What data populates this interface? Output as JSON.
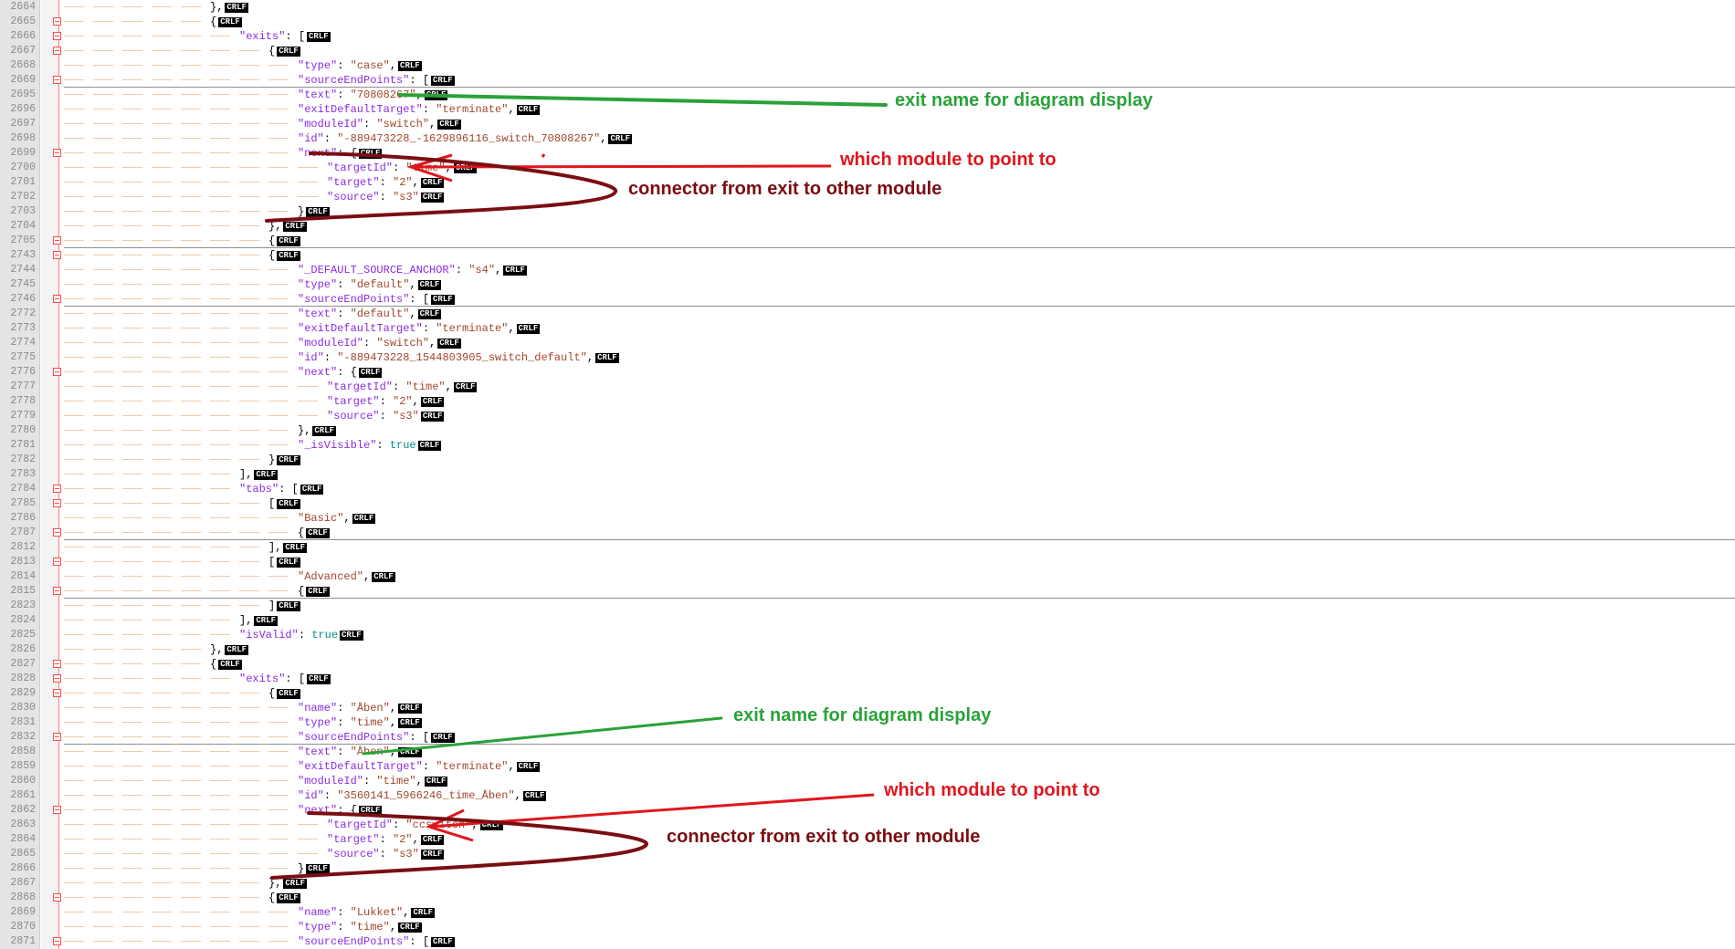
{
  "crlf_label": "CRLF",
  "colors": {
    "key": "#8a2be2",
    "string": "#a0462a",
    "boolean": "#008b8b",
    "fold_marker": "#ff4d4d",
    "annotation_green": "#2aa23a",
    "annotation_red": "#e0161e",
    "annotation_dark_red": "#7a0e12"
  },
  "lines": [
    {
      "n": "2664",
      "indent": 5,
      "parts": [
        [
          "p",
          "},"
        ]
      ],
      "fold": "line"
    },
    {
      "n": "2665",
      "indent": 5,
      "parts": [
        [
          "p",
          "{"
        ]
      ],
      "fold": "box"
    },
    {
      "n": "2666",
      "indent": 6,
      "parts": [
        [
          "k",
          "\"exits\""
        ],
        [
          "p",
          ": ["
        ]
      ],
      "fold": "box"
    },
    {
      "n": "2667",
      "indent": 7,
      "parts": [
        [
          "p",
          "{"
        ]
      ],
      "fold": "box"
    },
    {
      "n": "2668",
      "indent": 8,
      "parts": [
        [
          "k",
          "\"type\""
        ],
        [
          "p",
          ": "
        ],
        [
          "s",
          "\"case\""
        ],
        [
          "p",
          ","
        ]
      ],
      "fold": "line"
    },
    {
      "n": "2669",
      "indent": 8,
      "parts": [
        [
          "k",
          "\"sourceEndPoints\""
        ],
        [
          "p",
          ": ["
        ]
      ],
      "fold": "box",
      "sep": true
    },
    {
      "n": "2695",
      "indent": 8,
      "parts": [
        [
          "k",
          "\"text\""
        ],
        [
          "p",
          ": "
        ],
        [
          "s",
          "\"70808267\""
        ],
        [
          "p",
          ","
        ]
      ],
      "fold": "line"
    },
    {
      "n": "2696",
      "indent": 8,
      "parts": [
        [
          "k",
          "\"exitDefaultTarget\""
        ],
        [
          "p",
          ": "
        ],
        [
          "s",
          "\"terminate\""
        ],
        [
          "p",
          ","
        ]
      ],
      "fold": "line"
    },
    {
      "n": "2697",
      "indent": 8,
      "parts": [
        [
          "k",
          "\"moduleId\""
        ],
        [
          "p",
          ": "
        ],
        [
          "s",
          "\"switch\""
        ],
        [
          "p",
          ","
        ]
      ],
      "fold": "line"
    },
    {
      "n": "2698",
      "indent": 8,
      "parts": [
        [
          "k",
          "\"id\""
        ],
        [
          "p",
          ": "
        ],
        [
          "s",
          "\"-889473228_-1629896116_switch_70808267\""
        ],
        [
          "p",
          ","
        ]
      ],
      "fold": "line"
    },
    {
      "n": "2699",
      "indent": 8,
      "parts": [
        [
          "k",
          "\"next\""
        ],
        [
          "p",
          ": {"
        ]
      ],
      "fold": "box"
    },
    {
      "n": "2700",
      "indent": 9,
      "parts": [
        [
          "k",
          "\"targetId\""
        ],
        [
          "p",
          ": "
        ],
        [
          "s",
          "\"time\""
        ],
        [
          "p",
          ","
        ]
      ],
      "fold": "line"
    },
    {
      "n": "2701",
      "indent": 9,
      "parts": [
        [
          "k",
          "\"target\""
        ],
        [
          "p",
          ": "
        ],
        [
          "s",
          "\"2\""
        ],
        [
          "p",
          ","
        ]
      ],
      "fold": "line"
    },
    {
      "n": "2702",
      "indent": 9,
      "parts": [
        [
          "k",
          "\"source\""
        ],
        [
          "p",
          ": "
        ],
        [
          "s",
          "\"s3\""
        ]
      ],
      "fold": "line"
    },
    {
      "n": "2703",
      "indent": 8,
      "parts": [
        [
          "p",
          "}"
        ]
      ],
      "fold": "line"
    },
    {
      "n": "2704",
      "indent": 7,
      "parts": [
        [
          "p",
          "},"
        ]
      ],
      "fold": "line"
    },
    {
      "n": "2705",
      "indent": 7,
      "parts": [
        [
          "p",
          "{"
        ]
      ],
      "fold": "box",
      "sep": true
    },
    {
      "n": "2743",
      "indent": 7,
      "parts": [
        [
          "p",
          "{"
        ]
      ],
      "fold": "box"
    },
    {
      "n": "2744",
      "indent": 8,
      "parts": [
        [
          "k",
          "\"_DEFAULT_SOURCE_ANCHOR\""
        ],
        [
          "p",
          ": "
        ],
        [
          "s",
          "\"s4\""
        ],
        [
          "p",
          ","
        ]
      ],
      "fold": "line"
    },
    {
      "n": "2745",
      "indent": 8,
      "parts": [
        [
          "k",
          "\"type\""
        ],
        [
          "p",
          ": "
        ],
        [
          "s",
          "\"default\""
        ],
        [
          "p",
          ","
        ]
      ],
      "fold": "line"
    },
    {
      "n": "2746",
      "indent": 8,
      "parts": [
        [
          "k",
          "\"sourceEndPoints\""
        ],
        [
          "p",
          ": ["
        ]
      ],
      "fold": "box",
      "sep": true
    },
    {
      "n": "2772",
      "indent": 8,
      "parts": [
        [
          "k",
          "\"text\""
        ],
        [
          "p",
          ": "
        ],
        [
          "s",
          "\"default\""
        ],
        [
          "p",
          ","
        ]
      ],
      "fold": "line"
    },
    {
      "n": "2773",
      "indent": 8,
      "parts": [
        [
          "k",
          "\"exitDefaultTarget\""
        ],
        [
          "p",
          ": "
        ],
        [
          "s",
          "\"terminate\""
        ],
        [
          "p",
          ","
        ]
      ],
      "fold": "line"
    },
    {
      "n": "2774",
      "indent": 8,
      "parts": [
        [
          "k",
          "\"moduleId\""
        ],
        [
          "p",
          ": "
        ],
        [
          "s",
          "\"switch\""
        ],
        [
          "p",
          ","
        ]
      ],
      "fold": "line"
    },
    {
      "n": "2775",
      "indent": 8,
      "parts": [
        [
          "k",
          "\"id\""
        ],
        [
          "p",
          ": "
        ],
        [
          "s",
          "\"-889473228_1544803905_switch_default\""
        ],
        [
          "p",
          ","
        ]
      ],
      "fold": "line"
    },
    {
      "n": "2776",
      "indent": 8,
      "parts": [
        [
          "k",
          "\"next\""
        ],
        [
          "p",
          ": {"
        ]
      ],
      "fold": "box"
    },
    {
      "n": "2777",
      "indent": 9,
      "parts": [
        [
          "k",
          "\"targetId\""
        ],
        [
          "p",
          ": "
        ],
        [
          "s",
          "\"time\""
        ],
        [
          "p",
          ","
        ]
      ],
      "fold": "line"
    },
    {
      "n": "2778",
      "indent": 9,
      "parts": [
        [
          "k",
          "\"target\""
        ],
        [
          "p",
          ": "
        ],
        [
          "s",
          "\"2\""
        ],
        [
          "p",
          ","
        ]
      ],
      "fold": "line"
    },
    {
      "n": "2779",
      "indent": 9,
      "parts": [
        [
          "k",
          "\"source\""
        ],
        [
          "p",
          ": "
        ],
        [
          "s",
          "\"s3\""
        ]
      ],
      "fold": "line"
    },
    {
      "n": "2780",
      "indent": 8,
      "parts": [
        [
          "p",
          "},"
        ]
      ],
      "fold": "line"
    },
    {
      "n": "2781",
      "indent": 8,
      "parts": [
        [
          "k",
          "\"_isVisible\""
        ],
        [
          "p",
          ": "
        ],
        [
          "b",
          "true"
        ]
      ],
      "fold": "line"
    },
    {
      "n": "2782",
      "indent": 7,
      "parts": [
        [
          "p",
          "}"
        ]
      ],
      "fold": "line"
    },
    {
      "n": "2783",
      "indent": 6,
      "parts": [
        [
          "p",
          "],"
        ]
      ],
      "fold": "line"
    },
    {
      "n": "2784",
      "indent": 6,
      "parts": [
        [
          "k",
          "\"tabs\""
        ],
        [
          "p",
          ": ["
        ]
      ],
      "fold": "box"
    },
    {
      "n": "2785",
      "indent": 7,
      "parts": [
        [
          "p",
          "["
        ]
      ],
      "fold": "box"
    },
    {
      "n": "2786",
      "indent": 8,
      "parts": [
        [
          "s",
          "\"Basic\""
        ],
        [
          "p",
          ","
        ]
      ],
      "fold": "line"
    },
    {
      "n": "2787",
      "indent": 8,
      "parts": [
        [
          "p",
          "{"
        ]
      ],
      "fold": "box",
      "sep": true
    },
    {
      "n": "2812",
      "indent": 7,
      "parts": [
        [
          "p",
          "],"
        ]
      ],
      "fold": "line"
    },
    {
      "n": "2813",
      "indent": 7,
      "parts": [
        [
          "p",
          "["
        ]
      ],
      "fold": "box"
    },
    {
      "n": "2814",
      "indent": 8,
      "parts": [
        [
          "s",
          "\"Advanced\""
        ],
        [
          "p",
          ","
        ]
      ],
      "fold": "line"
    },
    {
      "n": "2815",
      "indent": 8,
      "parts": [
        [
          "p",
          "{"
        ]
      ],
      "fold": "box",
      "sep": true
    },
    {
      "n": "2823",
      "indent": 7,
      "parts": [
        [
          "p",
          "]"
        ]
      ],
      "fold": "line"
    },
    {
      "n": "2824",
      "indent": 6,
      "parts": [
        [
          "p",
          "],"
        ]
      ],
      "fold": "line"
    },
    {
      "n": "2825",
      "indent": 6,
      "parts": [
        [
          "k",
          "\"isValid\""
        ],
        [
          "p",
          ": "
        ],
        [
          "b",
          "true"
        ]
      ],
      "fold": "line"
    },
    {
      "n": "2826",
      "indent": 5,
      "parts": [
        [
          "p",
          "},"
        ]
      ],
      "fold": "line"
    },
    {
      "n": "2827",
      "indent": 5,
      "parts": [
        [
          "p",
          "{"
        ]
      ],
      "fold": "box"
    },
    {
      "n": "2828",
      "indent": 6,
      "parts": [
        [
          "k",
          "\"exits\""
        ],
        [
          "p",
          ": ["
        ]
      ],
      "fold": "box"
    },
    {
      "n": "2829",
      "indent": 7,
      "parts": [
        [
          "p",
          "{"
        ]
      ],
      "fold": "box"
    },
    {
      "n": "2830",
      "indent": 8,
      "parts": [
        [
          "k",
          "\"name\""
        ],
        [
          "p",
          ": "
        ],
        [
          "s",
          "\"Åben\""
        ],
        [
          "p",
          ","
        ]
      ],
      "fold": "line"
    },
    {
      "n": "2831",
      "indent": 8,
      "parts": [
        [
          "k",
          "\"type\""
        ],
        [
          "p",
          ": "
        ],
        [
          "s",
          "\"time\""
        ],
        [
          "p",
          ","
        ]
      ],
      "fold": "line"
    },
    {
      "n": "2832",
      "indent": 8,
      "parts": [
        [
          "k",
          "\"sourceEndPoints\""
        ],
        [
          "p",
          ": ["
        ]
      ],
      "fold": "box",
      "sep": true
    },
    {
      "n": "2858",
      "indent": 8,
      "parts": [
        [
          "k",
          "\"text\""
        ],
        [
          "p",
          ": "
        ],
        [
          "s",
          "\"Åben\""
        ],
        [
          "p",
          ","
        ]
      ],
      "fold": "line"
    },
    {
      "n": "2859",
      "indent": 8,
      "parts": [
        [
          "k",
          "\"exitDefaultTarget\""
        ],
        [
          "p",
          ": "
        ],
        [
          "s",
          "\"terminate\""
        ],
        [
          "p",
          ","
        ]
      ],
      "fold": "line"
    },
    {
      "n": "2860",
      "indent": 8,
      "parts": [
        [
          "k",
          "\"moduleId\""
        ],
        [
          "p",
          ": "
        ],
        [
          "s",
          "\"time\""
        ],
        [
          "p",
          ","
        ]
      ],
      "fold": "line"
    },
    {
      "n": "2861",
      "indent": 8,
      "parts": [
        [
          "k",
          "\"id\""
        ],
        [
          "p",
          ": "
        ],
        [
          "s",
          "\"3560141_5966246_time_Åben\""
        ],
        [
          "p",
          ","
        ]
      ],
      "fold": "line"
    },
    {
      "n": "2862",
      "indent": 8,
      "parts": [
        [
          "k",
          "\"next\""
        ],
        [
          "p",
          ": {"
        ]
      ],
      "fold": "box"
    },
    {
      "n": "2863",
      "indent": 9,
      "parts": [
        [
          "k",
          "\"targetId\""
        ],
        [
          "p",
          ": "
        ],
        [
          "s",
          "\"ccswitch\""
        ],
        [
          "p",
          ","
        ]
      ],
      "fold": "line"
    },
    {
      "n": "2864",
      "indent": 9,
      "parts": [
        [
          "k",
          "\"target\""
        ],
        [
          "p",
          ": "
        ],
        [
          "s",
          "\"2\""
        ],
        [
          "p",
          ","
        ]
      ],
      "fold": "line"
    },
    {
      "n": "2865",
      "indent": 9,
      "parts": [
        [
          "k",
          "\"source\""
        ],
        [
          "p",
          ": "
        ],
        [
          "s",
          "\"s3\""
        ]
      ],
      "fold": "line"
    },
    {
      "n": "2866",
      "indent": 8,
      "parts": [
        [
          "p",
          "}"
        ]
      ],
      "fold": "line"
    },
    {
      "n": "2867",
      "indent": 7,
      "parts": [
        [
          "p",
          "},"
        ]
      ],
      "fold": "line"
    },
    {
      "n": "2868",
      "indent": 7,
      "parts": [
        [
          "p",
          "{"
        ]
      ],
      "fold": "box"
    },
    {
      "n": "2869",
      "indent": 8,
      "parts": [
        [
          "k",
          "\"name\""
        ],
        [
          "p",
          ": "
        ],
        [
          "s",
          "\"Lukket\""
        ],
        [
          "p",
          ","
        ]
      ],
      "fold": "line"
    },
    {
      "n": "2870",
      "indent": 8,
      "parts": [
        [
          "k",
          "\"type\""
        ],
        [
          "p",
          ": "
        ],
        [
          "s",
          "\"time\""
        ],
        [
          "p",
          ","
        ]
      ],
      "fold": "line"
    },
    {
      "n": "2871",
      "indent": 8,
      "parts": [
        [
          "k",
          "\"sourceEndPoints\""
        ],
        [
          "p",
          ": ["
        ]
      ],
      "fold": "box"
    }
  ],
  "annotations": {
    "exit_name_1": "exit name for diagram display",
    "which_module_1": "which module to point to",
    "connector_1": "connector from exit to other module",
    "exit_name_2": "exit name for diagram display",
    "which_module_2": "which module to point to",
    "connector_2": "connector from exit to other module"
  }
}
